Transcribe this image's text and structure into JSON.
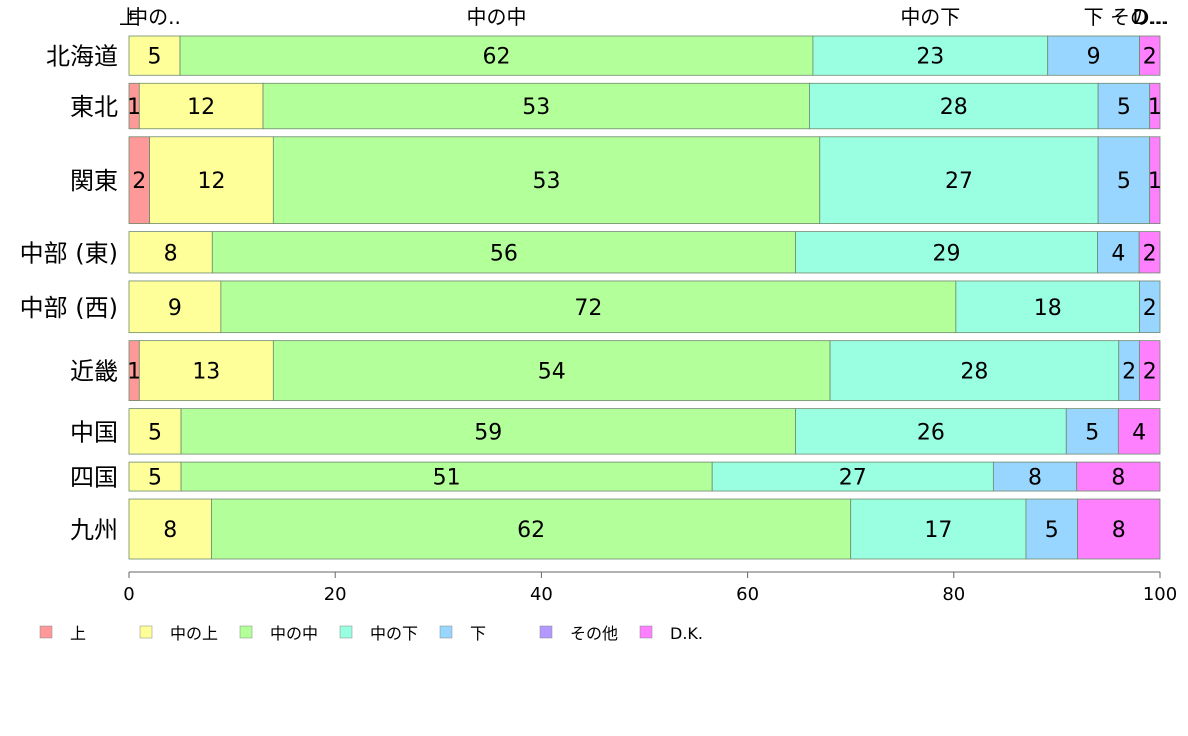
{
  "chart_data": {
    "type": "bar",
    "orientation": "horizontal",
    "stacked": true,
    "percent": true,
    "xlim": [
      0,
      100
    ],
    "x_ticks": [
      "0",
      "20",
      "40",
      "60",
      "80",
      "100"
    ],
    "grid": false,
    "legend_position": "bottom",
    "categories": [
      "北海道",
      "東北",
      "関東",
      "中部 (東)",
      "中部 (西)",
      "近畿",
      "中国",
      "四国",
      "九州"
    ],
    "relative_row_sizes": [
      0.95,
      1.1,
      2.1,
      1.0,
      1.25,
      1.45,
      1.1,
      0.7,
      1.45
    ],
    "top_labels": [
      "上",
      "中の..",
      "中の中",
      "中の下",
      "下",
      "その...",
      "D..."
    ],
    "series": [
      {
        "name": "上",
        "color": "#FF9999",
        "values": [
          0,
          1,
          2,
          0,
          0,
          1,
          0,
          0,
          0
        ]
      },
      {
        "name": "中の上",
        "color": "#FFFF99",
        "values": [
          5,
          12,
          12,
          8,
          9,
          13,
          5,
          5,
          8
        ]
      },
      {
        "name": "中の中",
        "color": "#B3FF99",
        "values": [
          62,
          53,
          53,
          56,
          72,
          54,
          59,
          51,
          62
        ]
      },
      {
        "name": "中の下",
        "color": "#99FFE0",
        "values": [
          23,
          28,
          27,
          29,
          18,
          28,
          26,
          27,
          17
        ]
      },
      {
        "name": "下",
        "color": "#99D6FF",
        "values": [
          9,
          5,
          5,
          4,
          2,
          2,
          5,
          8,
          5
        ]
      },
      {
        "name": "その他",
        "color": "#B399FF",
        "values": [
          0,
          0,
          0,
          0,
          0,
          0,
          0,
          0,
          0
        ]
      },
      {
        "name": "D.K.",
        "color": "#FF80FF",
        "values": [
          2,
          1,
          1,
          2,
          0,
          2,
          4,
          8,
          8
        ]
      }
    ]
  }
}
